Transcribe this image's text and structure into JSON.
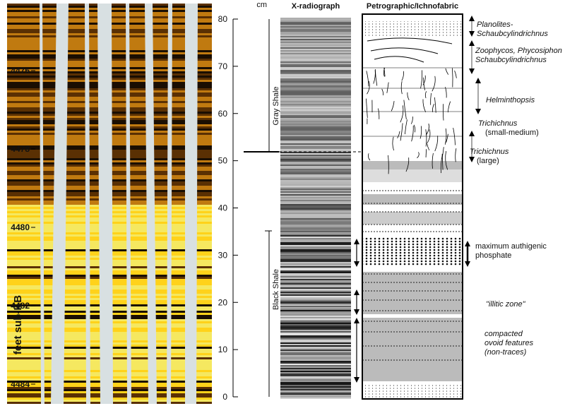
{
  "depth_axis": {
    "label": "feet sub-KB",
    "ticks": [
      4476,
      4478,
      4480,
      4482,
      4484
    ]
  },
  "cm_scale": {
    "unit": "cm",
    "ticks": [
      0,
      10,
      20,
      30,
      40,
      50,
      60,
      70,
      80
    ]
  },
  "intervals": {
    "upper": "Gray Shale",
    "lower": "Black Shale"
  },
  "headers": {
    "xray": "X-radiograph",
    "petro": "Petrographic/Ichnofabric"
  },
  "annotations": [
    {
      "lines": [
        "Planolites-",
        "Schaubcylindrichnus"
      ],
      "italic": true
    },
    {
      "lines": [
        "Zoophycos, Phycosiphon",
        "Schaubcylindrichnus"
      ],
      "italic": true
    },
    {
      "lines": [
        "Helminthopsis"
      ],
      "italic": true
    },
    {
      "lines": [
        "Trichichnus",
        "(small-medium)"
      ],
      "italic": true
    },
    {
      "lines": [
        "Trichichnus",
        "(large)"
      ],
      "italic": true
    },
    {
      "lines": [
        "maximum authigenic",
        "phosphate"
      ],
      "italic": false
    },
    {
      "lines": [
        "\"illitic zone\""
      ],
      "italic": true
    },
    {
      "lines": [
        "compacted",
        "ovoid features",
        "(non-traces)"
      ],
      "italic": true
    }
  ]
}
